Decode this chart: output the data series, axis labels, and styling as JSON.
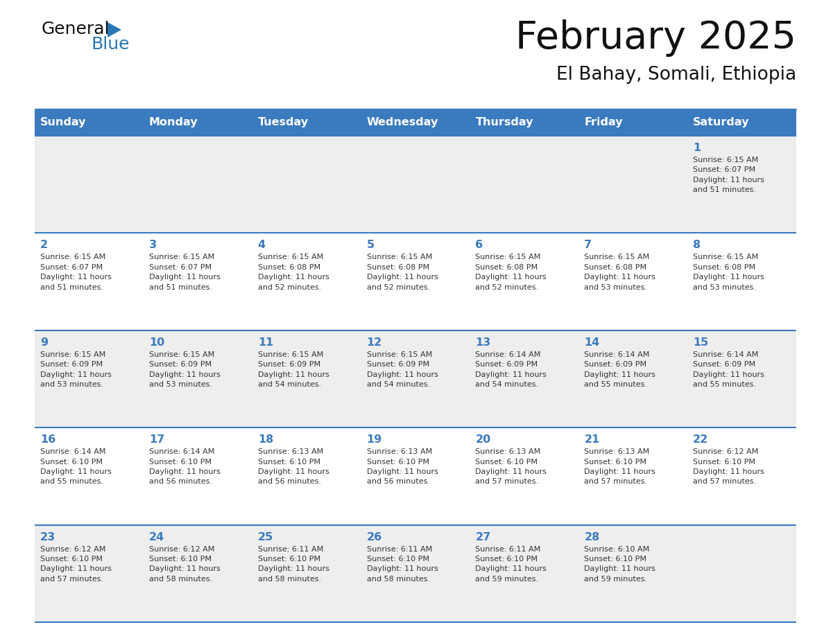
{
  "title": "February 2025",
  "subtitle": "El Bahay, Somali, Ethiopia",
  "days_of_week": [
    "Sunday",
    "Monday",
    "Tuesday",
    "Wednesday",
    "Thursday",
    "Friday",
    "Saturday"
  ],
  "header_bg_color": "#3a7abf",
  "header_text_color": "#ffffff",
  "row_bg_light": "#eeeeee",
  "row_bg_white": "#ffffff",
  "border_color": "#3a7abf",
  "day_number_color": "#3a7abf",
  "cell_text_color": "#333333",
  "title_color": "#111111",
  "subtitle_color": "#111111",
  "logo_general_color": "#111111",
  "logo_blue_color": "#2878b5",
  "calendar_data": [
    [
      {
        "day": null,
        "info": null
      },
      {
        "day": null,
        "info": null
      },
      {
        "day": null,
        "info": null
      },
      {
        "day": null,
        "info": null
      },
      {
        "day": null,
        "info": null
      },
      {
        "day": null,
        "info": null
      },
      {
        "day": 1,
        "info": "Sunrise: 6:15 AM\nSunset: 6:07 PM\nDaylight: 11 hours\nand 51 minutes."
      }
    ],
    [
      {
        "day": 2,
        "info": "Sunrise: 6:15 AM\nSunset: 6:07 PM\nDaylight: 11 hours\nand 51 minutes."
      },
      {
        "day": 3,
        "info": "Sunrise: 6:15 AM\nSunset: 6:07 PM\nDaylight: 11 hours\nand 51 minutes."
      },
      {
        "day": 4,
        "info": "Sunrise: 6:15 AM\nSunset: 6:08 PM\nDaylight: 11 hours\nand 52 minutes."
      },
      {
        "day": 5,
        "info": "Sunrise: 6:15 AM\nSunset: 6:08 PM\nDaylight: 11 hours\nand 52 minutes."
      },
      {
        "day": 6,
        "info": "Sunrise: 6:15 AM\nSunset: 6:08 PM\nDaylight: 11 hours\nand 52 minutes."
      },
      {
        "day": 7,
        "info": "Sunrise: 6:15 AM\nSunset: 6:08 PM\nDaylight: 11 hours\nand 53 minutes."
      },
      {
        "day": 8,
        "info": "Sunrise: 6:15 AM\nSunset: 6:08 PM\nDaylight: 11 hours\nand 53 minutes."
      }
    ],
    [
      {
        "day": 9,
        "info": "Sunrise: 6:15 AM\nSunset: 6:09 PM\nDaylight: 11 hours\nand 53 minutes."
      },
      {
        "day": 10,
        "info": "Sunrise: 6:15 AM\nSunset: 6:09 PM\nDaylight: 11 hours\nand 53 minutes."
      },
      {
        "day": 11,
        "info": "Sunrise: 6:15 AM\nSunset: 6:09 PM\nDaylight: 11 hours\nand 54 minutes."
      },
      {
        "day": 12,
        "info": "Sunrise: 6:15 AM\nSunset: 6:09 PM\nDaylight: 11 hours\nand 54 minutes."
      },
      {
        "day": 13,
        "info": "Sunrise: 6:14 AM\nSunset: 6:09 PM\nDaylight: 11 hours\nand 54 minutes."
      },
      {
        "day": 14,
        "info": "Sunrise: 6:14 AM\nSunset: 6:09 PM\nDaylight: 11 hours\nand 55 minutes."
      },
      {
        "day": 15,
        "info": "Sunrise: 6:14 AM\nSunset: 6:09 PM\nDaylight: 11 hours\nand 55 minutes."
      }
    ],
    [
      {
        "day": 16,
        "info": "Sunrise: 6:14 AM\nSunset: 6:10 PM\nDaylight: 11 hours\nand 55 minutes."
      },
      {
        "day": 17,
        "info": "Sunrise: 6:14 AM\nSunset: 6:10 PM\nDaylight: 11 hours\nand 56 minutes."
      },
      {
        "day": 18,
        "info": "Sunrise: 6:13 AM\nSunset: 6:10 PM\nDaylight: 11 hours\nand 56 minutes."
      },
      {
        "day": 19,
        "info": "Sunrise: 6:13 AM\nSunset: 6:10 PM\nDaylight: 11 hours\nand 56 minutes."
      },
      {
        "day": 20,
        "info": "Sunrise: 6:13 AM\nSunset: 6:10 PM\nDaylight: 11 hours\nand 57 minutes."
      },
      {
        "day": 21,
        "info": "Sunrise: 6:13 AM\nSunset: 6:10 PM\nDaylight: 11 hours\nand 57 minutes."
      },
      {
        "day": 22,
        "info": "Sunrise: 6:12 AM\nSunset: 6:10 PM\nDaylight: 11 hours\nand 57 minutes."
      }
    ],
    [
      {
        "day": 23,
        "info": "Sunrise: 6:12 AM\nSunset: 6:10 PM\nDaylight: 11 hours\nand 57 minutes."
      },
      {
        "day": 24,
        "info": "Sunrise: 6:12 AM\nSunset: 6:10 PM\nDaylight: 11 hours\nand 58 minutes."
      },
      {
        "day": 25,
        "info": "Sunrise: 6:11 AM\nSunset: 6:10 PM\nDaylight: 11 hours\nand 58 minutes."
      },
      {
        "day": 26,
        "info": "Sunrise: 6:11 AM\nSunset: 6:10 PM\nDaylight: 11 hours\nand 58 minutes."
      },
      {
        "day": 27,
        "info": "Sunrise: 6:11 AM\nSunset: 6:10 PM\nDaylight: 11 hours\nand 59 minutes."
      },
      {
        "day": 28,
        "info": "Sunrise: 6:10 AM\nSunset: 6:10 PM\nDaylight: 11 hours\nand 59 minutes."
      },
      {
        "day": null,
        "info": null
      }
    ]
  ],
  "fig_width": 11.88,
  "fig_height": 9.18,
  "dpi": 100
}
